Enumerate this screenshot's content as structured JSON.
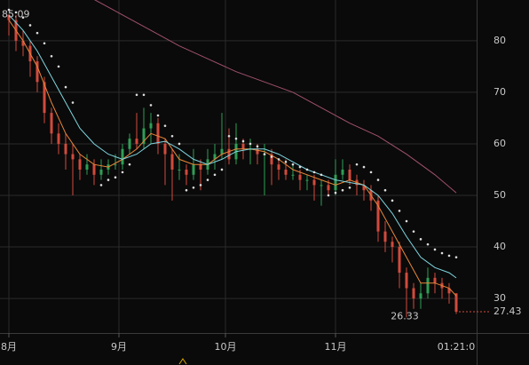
{
  "chart_data": {
    "type": "candlestick",
    "xlim": [
      -2.5,
      131.75
    ],
    "ylim": [
      23.3,
      87.9
    ],
    "yticks": [
      30,
      40,
      50,
      60,
      70,
      80
    ],
    "xticks": [
      {
        "value": 0,
        "label": "8月"
      },
      {
        "value": 31,
        "label": "9月"
      },
      {
        "value": 61,
        "label": "10月"
      },
      {
        "value": 92,
        "label": "11月"
      }
    ],
    "grid": true,
    "up_color": "#2f9e55",
    "down_color": "#d24a3c",
    "countdown": "01:21:0",
    "candles": [
      [
        0,
        85,
        85.09,
        81,
        84
      ],
      [
        2,
        84,
        85,
        78,
        80
      ],
      [
        4,
        80,
        82,
        77,
        79
      ],
      [
        6,
        79,
        80,
        73,
        76
      ],
      [
        8,
        76,
        77,
        70,
        72
      ],
      [
        10,
        72,
        73,
        64,
        66
      ],
      [
        12,
        66,
        67,
        60,
        62
      ],
      [
        14,
        62,
        64,
        58,
        60
      ],
      [
        16,
        60,
        62,
        55,
        58
      ],
      [
        18,
        58,
        60,
        50,
        57
      ],
      [
        20,
        57,
        58,
        53,
        55
      ],
      [
        22,
        55,
        58,
        54,
        56
      ],
      [
        24,
        56,
        57,
        52,
        54
      ],
      [
        26,
        54,
        57,
        53,
        55
      ],
      [
        28,
        55,
        57,
        54,
        56
      ],
      [
        30,
        56,
        58,
        55,
        56
      ],
      [
        32,
        56,
        60,
        55,
        59
      ],
      [
        34,
        59,
        62,
        58,
        61
      ],
      [
        36,
        61,
        66,
        59,
        60
      ],
      [
        38,
        60,
        67,
        59,
        63
      ],
      [
        40,
        63,
        66,
        60,
        64
      ],
      [
        42,
        64,
        65,
        58,
        60
      ],
      [
        44,
        60,
        61,
        52,
        58
      ],
      [
        46,
        58,
        59,
        49,
        55
      ],
      [
        48,
        55,
        58,
        53,
        55
      ],
      [
        50,
        55,
        56,
        52,
        54
      ],
      [
        52,
        54,
        59,
        53,
        56
      ],
      [
        54,
        56,
        57,
        51,
        55
      ],
      [
        56,
        55,
        59,
        54,
        57
      ],
      [
        58,
        57,
        60,
        55,
        58
      ],
      [
        60,
        58,
        66,
        57,
        59
      ],
      [
        62,
        59,
        63,
        56,
        57
      ],
      [
        64,
        57,
        64,
        56,
        60
      ],
      [
        66,
        60,
        61,
        57,
        59
      ],
      [
        68,
        59,
        61,
        56,
        59
      ],
      [
        70,
        59,
        60,
        56,
        58
      ],
      [
        72,
        58,
        60,
        50,
        58
      ],
      [
        74,
        58,
        59,
        52,
        56
      ],
      [
        76,
        56,
        57,
        53,
        55
      ],
      [
        78,
        55,
        57,
        53,
        54
      ],
      [
        80,
        54,
        56,
        53,
        54
      ],
      [
        82,
        54,
        55,
        51,
        53
      ],
      [
        84,
        53,
        54,
        51,
        53
      ],
      [
        86,
        53,
        54,
        49,
        52
      ],
      [
        88,
        52,
        53,
        48,
        52
      ],
      [
        90,
        52,
        53,
        50,
        51
      ],
      [
        92,
        51,
        57,
        50,
        54
      ],
      [
        94,
        54,
        57,
        53,
        55
      ],
      [
        96,
        55,
        56,
        52,
        53
      ],
      [
        98,
        53,
        54,
        50,
        52
      ],
      [
        100,
        52,
        53,
        49,
        51
      ],
      [
        102,
        51,
        52,
        47,
        49
      ],
      [
        104,
        49,
        50,
        41,
        43
      ],
      [
        106,
        43,
        45,
        39,
        41
      ],
      [
        108,
        41,
        42,
        37,
        40
      ],
      [
        110,
        40,
        41,
        32,
        35
      ],
      [
        112,
        35,
        36,
        26.33,
        32
      ],
      [
        114,
        32,
        33,
        28,
        30
      ],
      [
        116,
        30,
        33,
        28,
        31
      ],
      [
        118,
        31,
        36,
        30,
        34
      ],
      [
        120,
        34,
        35,
        31,
        33
      ],
      [
        122,
        33,
        34,
        30,
        32
      ],
      [
        124,
        32,
        33,
        29,
        31
      ],
      [
        126,
        31,
        31,
        27,
        27.43
      ]
    ],
    "series": [
      {
        "style": "line",
        "color": "#e8873a",
        "x": [
          0,
          4,
          8,
          12,
          16,
          20,
          24,
          28,
          32,
          36,
          40,
          44,
          48,
          52,
          56,
          60,
          64,
          68,
          72,
          76,
          80,
          84,
          88,
          92,
          96,
          100,
          104,
          108,
          112,
          116,
          120,
          124,
          126
        ],
        "values": [
          84,
          80,
          75,
          68,
          62,
          58,
          56,
          55.5,
          57,
          59,
          62,
          61,
          57,
          56,
          56,
          58,
          59,
          59,
          58.5,
          57,
          55,
          54,
          53,
          52,
          53,
          52,
          48,
          43,
          38,
          33,
          33,
          32,
          30.5
        ]
      },
      {
        "style": "line",
        "color": "#7fd6e0",
        "x": [
          0,
          4,
          8,
          12,
          16,
          20,
          24,
          28,
          32,
          36,
          40,
          44,
          48,
          52,
          56,
          60,
          64,
          68,
          72,
          76,
          80,
          84,
          88,
          92,
          96,
          100,
          104,
          108,
          112,
          116,
          120,
          124,
          126
        ],
        "values": [
          85,
          82,
          78,
          73,
          68,
          63,
          60,
          58,
          57,
          58,
          60,
          60.5,
          59,
          57,
          56,
          57,
          58.5,
          59,
          59,
          58,
          56.5,
          55,
          54,
          53,
          52.5,
          52,
          50,
          46.5,
          42,
          38,
          36,
          35,
          34
        ]
      },
      {
        "style": "line",
        "color": "#a0506e",
        "x": [
          24,
          32,
          40,
          48,
          56,
          64,
          72,
          80,
          88,
          96,
          104,
          112,
          120,
          126
        ],
        "values": [
          88,
          85,
          82,
          79,
          76.5,
          74,
          72,
          70,
          67,
          64,
          61.5,
          58,
          54,
          50.5
        ]
      },
      {
        "style": "dots",
        "color": "#dddddd",
        "x": [
          0,
          2,
          4,
          6,
          8,
          10,
          12,
          14,
          16,
          18,
          26,
          28,
          30,
          32,
          34,
          36,
          38,
          40,
          42,
          44,
          46,
          48,
          50,
          52,
          54,
          56,
          58,
          60,
          62,
          64,
          66,
          68,
          70,
          72,
          74,
          76,
          78,
          80,
          82,
          84,
          86,
          88,
          90,
          92,
          94,
          96,
          98,
          100,
          102,
          104,
          106,
          108,
          110,
          112,
          114,
          116,
          118,
          120,
          122,
          124,
          126
        ],
        "values": [
          86,
          85.5,
          84.5,
          83,
          81.5,
          79.5,
          77,
          75,
          71,
          68,
          52,
          53,
          53.5,
          54.5,
          56,
          69.5,
          69.5,
          67.5,
          65.5,
          63.5,
          61.5,
          60,
          51,
          51.5,
          52,
          53,
          54,
          55,
          61.5,
          61,
          60.5,
          60,
          59.5,
          58,
          57.5,
          57,
          56.5,
          56,
          55.5,
          55,
          54.5,
          54,
          50,
          50.5,
          51,
          51.5,
          56,
          55.5,
          54.5,
          53,
          51,
          49,
          47,
          45,
          43,
          41.5,
          40.5,
          39.5,
          38.8,
          38.3,
          38
        ]
      }
    ]
  }
}
